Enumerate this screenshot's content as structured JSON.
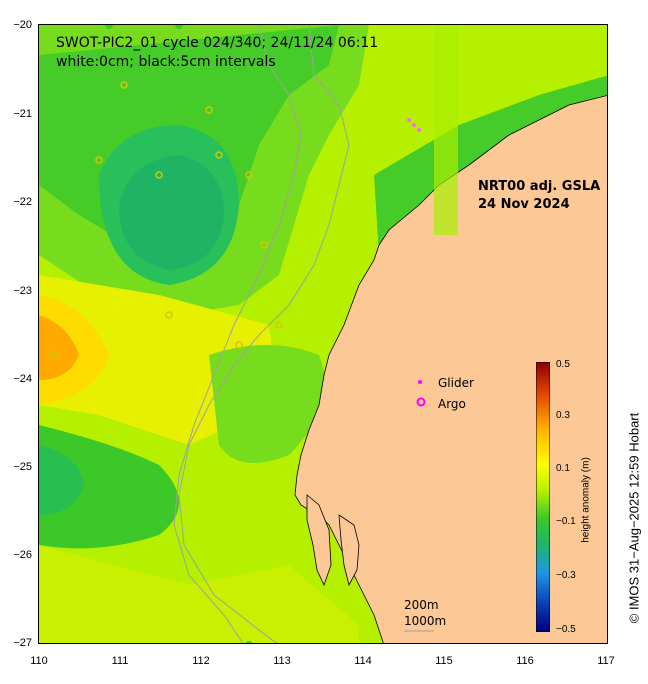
{
  "title": {
    "line1": "SWOT-PIC2_01 cycle 024/340; 24/11/24 06:11",
    "line2": "white:0cm; black:5cm intervals"
  },
  "product": {
    "line1": "NRT00 adj. GSLA",
    "line2": "24 Nov 2024"
  },
  "legend": {
    "glider": "Glider",
    "argo": "Argo",
    "glider_color": "#ff00ff",
    "argo_color": "#ff00ff"
  },
  "scale": {
    "a": "200m",
    "b": "1000m"
  },
  "axes": {
    "x_ticks": [
      "110",
      "111",
      "112",
      "113",
      "114",
      "115",
      "116",
      "117"
    ],
    "y_ticks": [
      "−20",
      "−21",
      "−22",
      "−23",
      "−24",
      "−25",
      "−26",
      "−27"
    ],
    "lon_range": [
      110,
      117
    ],
    "lat_range": [
      -27,
      -20
    ]
  },
  "colorbar": {
    "title": "height anomaly (m)",
    "ticks": [
      "0.5",
      "0.3",
      "0.1",
      "−0.1",
      "−0.3",
      "−0.5"
    ],
    "range": [
      -0.5,
      0.5
    ]
  },
  "credit": "© IMOS 31−Aug−2025 12:59 Hobart",
  "colors": {
    "land": "#fcc896",
    "sla_low": "#3cc828",
    "sla_mid": "#c8ff00",
    "sla_high": "#ffb400",
    "depth_contour": "#a0a0a0"
  }
}
